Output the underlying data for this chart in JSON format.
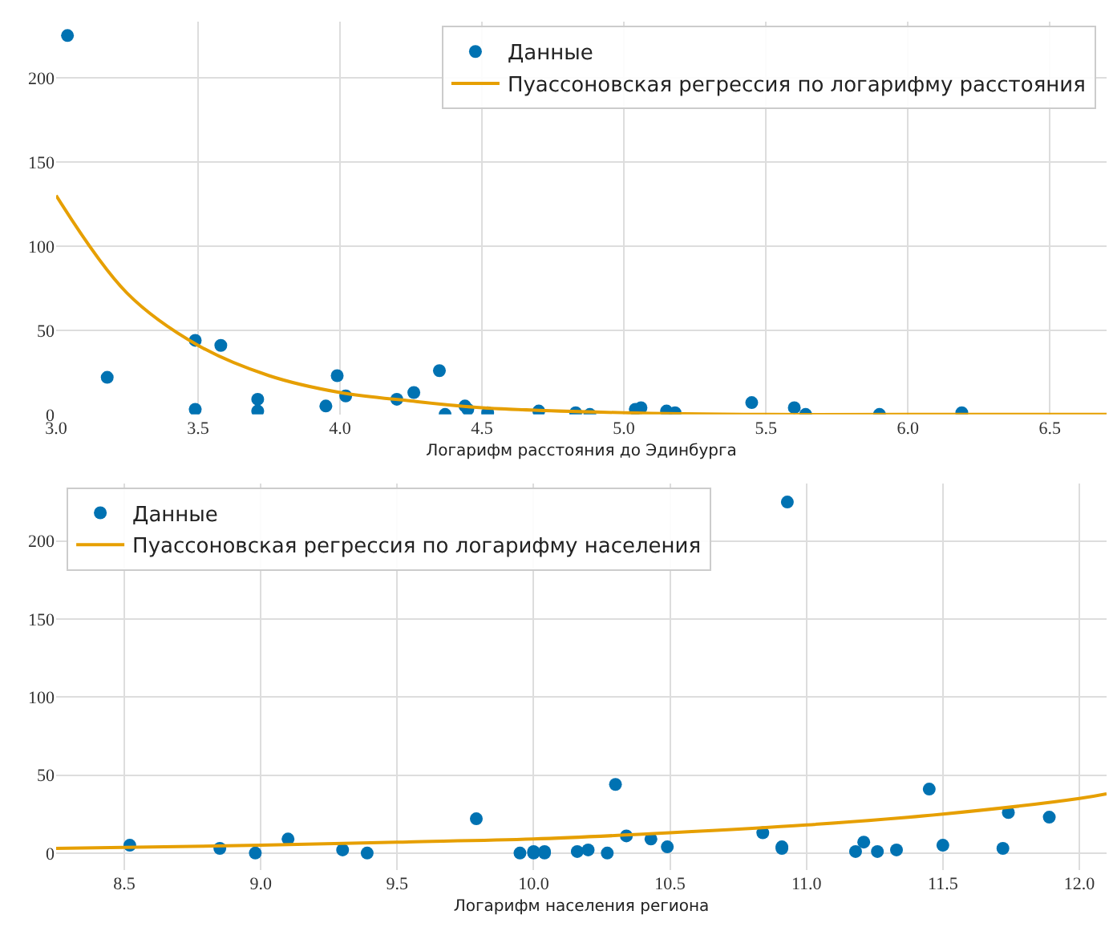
{
  "chart_data": [
    {
      "type": "scatter",
      "xlabel": "Логарифм расстояния до Эдинбурга",
      "xlim": [
        3.0,
        6.7
      ],
      "xticks": [
        {
          "value": 3.0,
          "label": "3.0"
        },
        3.5,
        {
          "value": 4.0,
          "label": "4.0"
        },
        4.5,
        {
          "value": 5.0,
          "label": "5.0"
        },
        5.5,
        {
          "value": 6.0,
          "label": "6.0"
        },
        6.5
      ],
      "ylim": [
        0,
        233
      ],
      "yticks": [
        0,
        50,
        100,
        150,
        200
      ],
      "grid": true,
      "legend": "top right",
      "series": [
        {
          "name": "Данные",
          "marker": "circle",
          "color": "#0072b2",
          "x": [
            3.04,
            3.18,
            3.49,
            3.49,
            3.58,
            3.71,
            3.71,
            3.95,
            3.99,
            4.02,
            4.2,
            4.26,
            4.35,
            4.37,
            4.44,
            4.45,
            4.52,
            4.7,
            4.83,
            4.88,
            5.04,
            5.06,
            5.15,
            5.18,
            5.45,
            5.6,
            5.64,
            5.9,
            6.19
          ],
          "values": [
            225,
            22,
            44,
            3,
            41,
            9,
            2,
            5,
            23,
            11,
            9,
            13,
            26,
            0,
            5,
            3,
            1,
            2,
            1,
            0,
            3,
            4,
            2,
            1,
            7,
            4,
            0,
            0,
            1
          ]
        },
        {
          "name": "Пуассоновская регрессия по логарифму расстояния",
          "type": "line",
          "marker": "none",
          "color": "#e69f00",
          "x": [
            3.0,
            3.25,
            3.5,
            3.75,
            4.0,
            4.25,
            4.5,
            5.0,
            5.5,
            6.0,
            6.7
          ],
          "values": [
            130,
            72,
            41,
            23,
            13,
            8,
            4,
            1,
            0,
            0,
            0
          ]
        }
      ]
    },
    {
      "type": "scatter",
      "xlabel": "Логарифм населения региона",
      "xlim": [
        8.25,
        12.1
      ],
      "xticks": [
        8.5,
        {
          "value": 9.0,
          "label": "9.0"
        },
        9.5,
        {
          "value": 10.0,
          "label": "10.0"
        },
        10.5,
        {
          "value": 11.0,
          "label": "11.0"
        },
        11.5,
        {
          "value": 12.0,
          "label": "12.0"
        }
      ],
      "ylim": [
        -11,
        237
      ],
      "yticks": [
        0,
        50,
        100,
        150,
        200
      ],
      "grid": true,
      "legend": "top left",
      "series": [
        {
          "name": "Данные",
          "marker": "circle",
          "color": "#0072b2",
          "x": [
            8.52,
            8.85,
            8.98,
            9.1,
            9.3,
            9.39,
            9.79,
            9.95,
            10.0,
            10.0,
            10.04,
            10.04,
            10.16,
            10.2,
            10.27,
            10.3,
            10.34,
            10.43,
            10.49,
            10.84,
            10.91,
            10.91,
            10.93,
            11.18,
            11.21,
            11.26,
            11.33,
            11.45,
            11.5,
            11.72,
            11.74,
            11.89
          ],
          "values": [
            5,
            3,
            0,
            9,
            2,
            0,
            22,
            0,
            1,
            0,
            0,
            1,
            1,
            2,
            0,
            44,
            11,
            9,
            4,
            13,
            4,
            3,
            225,
            1,
            7,
            1,
            2,
            41,
            5,
            3,
            26,
            23
          ]
        },
        {
          "name": "Пуассоновская регрессия по логарифму населения",
          "type": "line",
          "marker": "none",
          "color": "#e69f00",
          "x": [
            8.25,
            9.0,
            9.5,
            10.0,
            10.5,
            11.0,
            11.5,
            12.0,
            12.1
          ],
          "values": [
            3,
            5,
            7,
            9,
            13,
            18,
            25,
            35,
            38
          ]
        }
      ]
    }
  ]
}
